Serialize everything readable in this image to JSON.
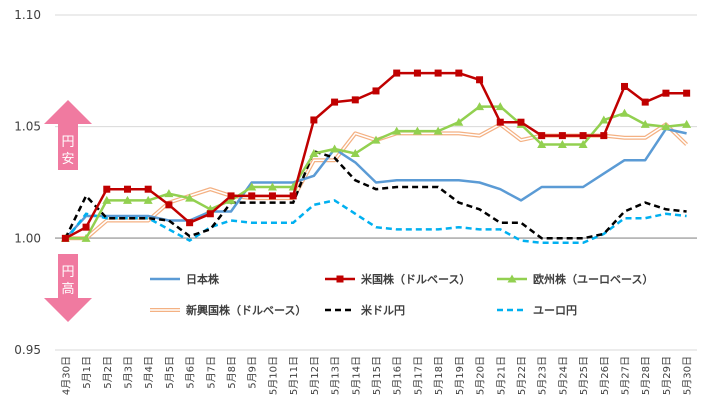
{
  "chart_data": {
    "type": "line",
    "x": [
      "4月30日",
      "5月1日",
      "5月2日",
      "5月3日",
      "5月4日",
      "5月5日",
      "5月6日",
      "5月7日",
      "5月8日",
      "5月9日",
      "5月10日",
      "5月11日",
      "5月12日",
      "5月13日",
      "5月14日",
      "5月15日",
      "5月16日",
      "5月17日",
      "5月18日",
      "5月19日",
      "5月20日",
      "5月21日",
      "5月22日",
      "5月23日",
      "5月24日",
      "5月25日",
      "5月26日",
      "5月27日",
      "5月28日",
      "5月29日",
      "5月30日"
    ],
    "ylim": [
      0.95,
      1.1
    ],
    "yticks": [
      "0.95",
      "1.00",
      "1.05",
      "1.10"
    ],
    "ytick_values": [
      0.95,
      1.0,
      1.05,
      1.1
    ],
    "grid": true,
    "annotations": {
      "up": [
        "円",
        "安"
      ],
      "down": [
        "円",
        "高"
      ]
    },
    "arrow_color": "#f07aa0",
    "series": [
      {
        "name": "日本株",
        "color": "#5b9bd5",
        "style": "solid",
        "values": [
          1.0,
          1.01,
          1.01,
          1.01,
          1.01,
          1.008,
          1.008,
          1.012,
          1.012,
          1.025,
          1.025,
          1.025,
          1.028,
          1.04,
          1.034,
          1.025,
          1.026,
          1.026,
          1.026,
          1.026,
          1.025,
          1.022,
          1.017,
          1.023,
          1.023,
          1.023,
          1.029,
          1.035,
          1.035,
          1.049,
          1.047
        ]
      },
      {
        "name": "米国株（ドルベース）",
        "color": "#c00000",
        "style": "solid-square",
        "values": [
          1.0,
          1.005,
          1.022,
          1.022,
          1.022,
          1.015,
          1.007,
          1.011,
          1.019,
          1.019,
          1.019,
          1.019,
          1.053,
          1.061,
          1.062,
          1.066,
          1.074,
          1.074,
          1.074,
          1.074,
          1.071,
          1.052,
          1.052,
          1.046,
          1.046,
          1.046,
          1.046,
          1.068,
          1.061,
          1.065,
          1.065
        ]
      },
      {
        "name": "欧州株（ユーロベース）",
        "color": "#92d050",
        "style": "solid-triangle",
        "values": [
          1.0,
          1.0,
          1.017,
          1.017,
          1.017,
          1.02,
          1.018,
          1.013,
          1.017,
          1.023,
          1.023,
          1.023,
          1.038,
          1.04,
          1.038,
          1.044,
          1.048,
          1.048,
          1.048,
          1.052,
          1.059,
          1.059,
          1.051,
          1.042,
          1.042,
          1.042,
          1.053,
          1.056,
          1.051,
          1.05,
          1.051
        ]
      },
      {
        "name": "新興国株（ドルベース）",
        "color": "#f4b183",
        "style": "double",
        "values": [
          1.0,
          1.0,
          1.008,
          1.008,
          1.008,
          1.016,
          1.019,
          1.022,
          1.019,
          1.018,
          1.018,
          1.018,
          1.035,
          1.035,
          1.047,
          1.044,
          1.047,
          1.047,
          1.047,
          1.047,
          1.046,
          1.051,
          1.044,
          1.046,
          1.046,
          1.046,
          1.046,
          1.045,
          1.045,
          1.051,
          1.042
        ]
      },
      {
        "name": "米ドル円",
        "color": "#000000",
        "style": "dashed",
        "values": [
          1.0,
          1.019,
          1.009,
          1.009,
          1.009,
          1.008,
          1.001,
          1.004,
          1.016,
          1.016,
          1.016,
          1.016,
          1.039,
          1.036,
          1.026,
          1.022,
          1.023,
          1.023,
          1.023,
          1.016,
          1.013,
          1.007,
          1.007,
          1.0,
          1.0,
          1.0,
          1.002,
          1.012,
          1.016,
          1.013,
          1.012
        ]
      },
      {
        "name": "ユーロ円",
        "color": "#00b0f0",
        "style": "dashed",
        "values": [
          0.999,
          1.011,
          1.009,
          1.009,
          1.009,
          1.004,
          0.999,
          1.005,
          1.008,
          1.007,
          1.007,
          1.007,
          1.015,
          1.017,
          1.011,
          1.005,
          1.004,
          1.004,
          1.004,
          1.005,
          1.004,
          1.004,
          0.999,
          0.998,
          0.998,
          0.998,
          1.002,
          1.009,
          1.009,
          1.011,
          1.01
        ]
      }
    ]
  }
}
